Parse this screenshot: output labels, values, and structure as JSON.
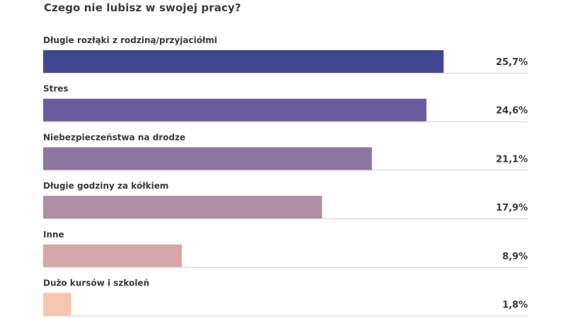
{
  "chart_data": {
    "type": "bar",
    "orientation": "horizontal",
    "title": "Czego nie lubisz w swojej pracy?",
    "xlabel": "",
    "ylabel": "",
    "xlim": [
      0,
      30
    ],
    "grid": false,
    "legend": "none",
    "categories": [
      "Długie rozłąki z rodziną/przyjaciółmi",
      "Stres",
      "Niebezpieczeństwa na drodze",
      "Długie godziny za kółkiem",
      "Inne",
      "Dużo kursów i szkoleń"
    ],
    "values": [
      25.7,
      24.6,
      21.1,
      17.9,
      8.9,
      1.8
    ],
    "value_labels": [
      "25,7%",
      "24,6%",
      "21,1%",
      "17,9%",
      "8,9%",
      "1,8%"
    ],
    "colors": [
      "#414893",
      "#6a5c9c",
      "#8f76a0",
      "#b08fa6",
      "#d5a9aa",
      "#f7c6b0"
    ],
    "baseline_color": "#d9cfc9"
  }
}
